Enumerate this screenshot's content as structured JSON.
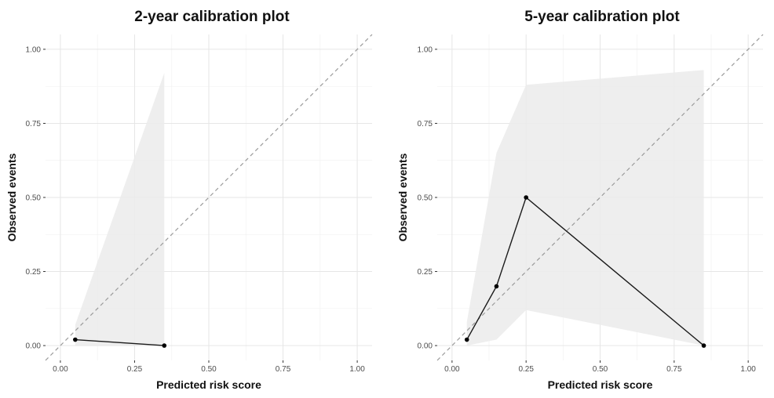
{
  "chart_data": [
    {
      "type": "line",
      "title": "2-year calibration plot",
      "xlabel": "Predicted risk score",
      "ylabel": "Observed events",
      "xlim": [
        -0.05,
        1.05
      ],
      "ylim": [
        -0.05,
        1.05
      ],
      "xticks": [
        "0.00",
        "0.25",
        "0.50",
        "0.75",
        "1.00"
      ],
      "yticks": [
        "0.00",
        "0.25",
        "0.50",
        "0.75",
        "1.00"
      ],
      "grid": true,
      "reference_line": {
        "style": "dashed",
        "from": [
          -0.05,
          -0.05
        ],
        "to": [
          1.05,
          1.05
        ]
      },
      "series": [
        {
          "name": "observed",
          "x": [
            0.05,
            0.35
          ],
          "y": [
            0.02,
            0.0
          ]
        }
      ],
      "ci_band": [
        {
          "x": 0.05,
          "lower": 0.0,
          "upper": 0.07
        },
        {
          "x": 0.35,
          "lower": 0.0,
          "upper": 0.92
        }
      ]
    },
    {
      "type": "line",
      "title": "5-year calibration plot",
      "xlabel": "Predicted risk score",
      "ylabel": "Observed events",
      "xlim": [
        -0.05,
        1.05
      ],
      "ylim": [
        -0.05,
        1.05
      ],
      "xticks": [
        "0.00",
        "0.25",
        "0.50",
        "0.75",
        "1.00"
      ],
      "yticks": [
        "0.00",
        "0.25",
        "0.50",
        "0.75",
        "1.00"
      ],
      "grid": true,
      "reference_line": {
        "style": "dashed",
        "from": [
          -0.05,
          -0.05
        ],
        "to": [
          1.05,
          1.05
        ]
      },
      "series": [
        {
          "name": "observed",
          "x": [
            0.05,
            0.15,
            0.25,
            0.85
          ],
          "y": [
            0.02,
            0.2,
            0.5,
            0.0
          ]
        }
      ],
      "ci_band": [
        {
          "x": 0.05,
          "lower": 0.0,
          "upper": 0.08
        },
        {
          "x": 0.15,
          "lower": 0.02,
          "upper": 0.65
        },
        {
          "x": 0.25,
          "lower": 0.12,
          "upper": 0.88
        },
        {
          "x": 0.85,
          "lower": 0.0,
          "upper": 0.93
        }
      ]
    }
  ]
}
